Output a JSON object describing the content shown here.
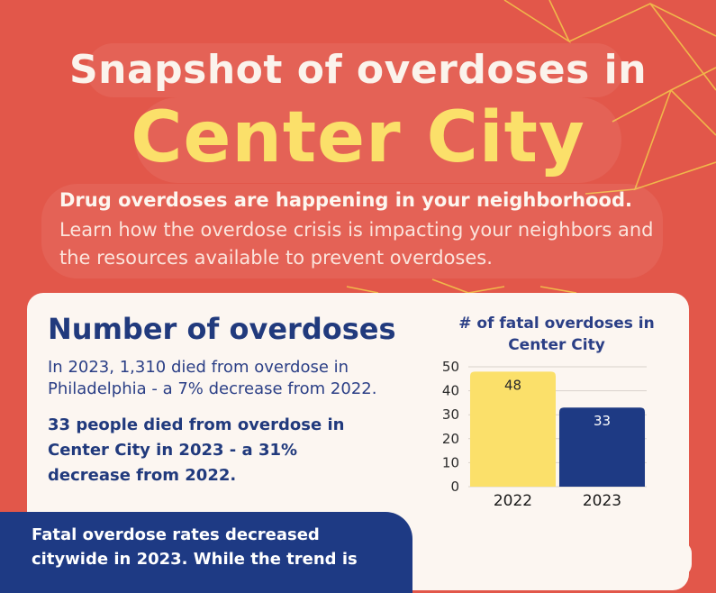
{
  "header": {
    "title_line1": "Snapshot of overdoses in",
    "title_line2": "Center City"
  },
  "intro": {
    "bold": "Drug overdoses are happening in your neighborhood.",
    "body": "Learn how the overdose crisis is impacting your neighbors and the resources available to prevent overdoses."
  },
  "card": {
    "title": "Number of overdoses",
    "text": "In 2023, 1,310 died from overdose in Philadelphia - a 7% decrease from 2022.",
    "bold": "33 people died from overdose in Center City in 2023 - a 31% decrease from 2022."
  },
  "chart_data": {
    "type": "bar",
    "title": "# of fatal overdoses in Center City",
    "categories": [
      "2022",
      "2023"
    ],
    "values": [
      48,
      33
    ],
    "value_labels": [
      "48",
      "33"
    ],
    "colors": [
      "#fbe06a",
      "#1e3a84"
    ],
    "label_colors": [
      "#2a2a2a",
      "#ffffff"
    ],
    "ylim": [
      0,
      50
    ],
    "yticks": [
      "0",
      "10",
      "20",
      "30",
      "40",
      "50"
    ],
    "grid": true
  },
  "callout": {
    "text": "Fatal overdose rates decreased citywide in 2023. While the trend is"
  },
  "colors": {
    "background": "#e2574a",
    "accent_yellow": "#fbe06a",
    "navy": "#1e3a84",
    "card": "#fcf6f1"
  }
}
